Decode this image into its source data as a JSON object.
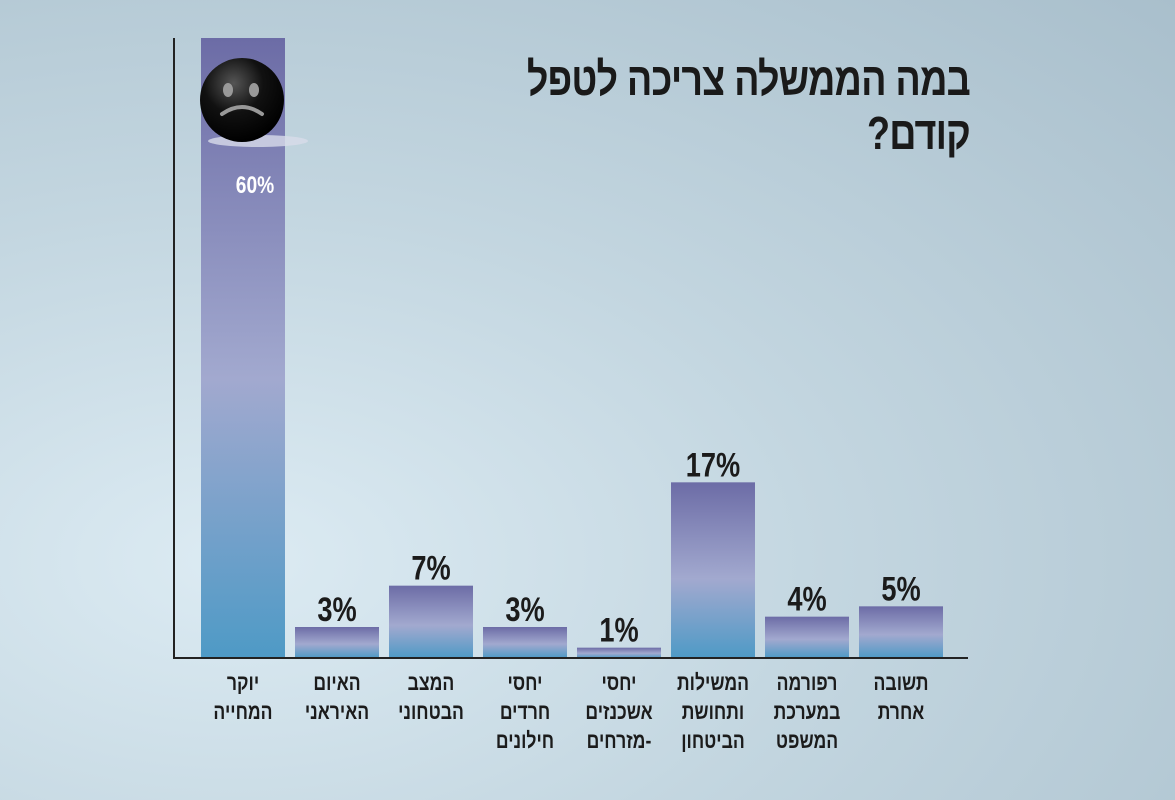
{
  "chart_data": {
    "type": "bar",
    "title": "במה הממשלה צריכה לטפל קודם?",
    "categories": [
      [
        "יוקר",
        "המחייה"
      ],
      [
        "האיום",
        "האיראני"
      ],
      [
        "המצב",
        "הבטחוני"
      ],
      [
        "יחסי",
        "חרדים",
        "חילונים"
      ],
      [
        "יחסי",
        "אשכנזים",
        "-מזרחים"
      ],
      [
        "המשילות",
        "ותחושת",
        "הביטחון"
      ],
      [
        "רפורמה",
        "במערכת",
        "המשפט"
      ],
      [
        "תשובה",
        "אחרת"
      ]
    ],
    "values": [
      60,
      3,
      7,
      3,
      1,
      17,
      4,
      5
    ],
    "value_labels": [
      "60%",
      "3%",
      "7%",
      "3%",
      "1%",
      "17%",
      "4%",
      "5%"
    ],
    "ylim": [
      0,
      60
    ],
    "xlabel": "",
    "ylabel": "",
    "grid": false,
    "colors": {
      "bar_top": "#6c6ca6",
      "bar_mid": "#a2a9cf",
      "bar_bottom": "#4e9ac6"
    }
  }
}
